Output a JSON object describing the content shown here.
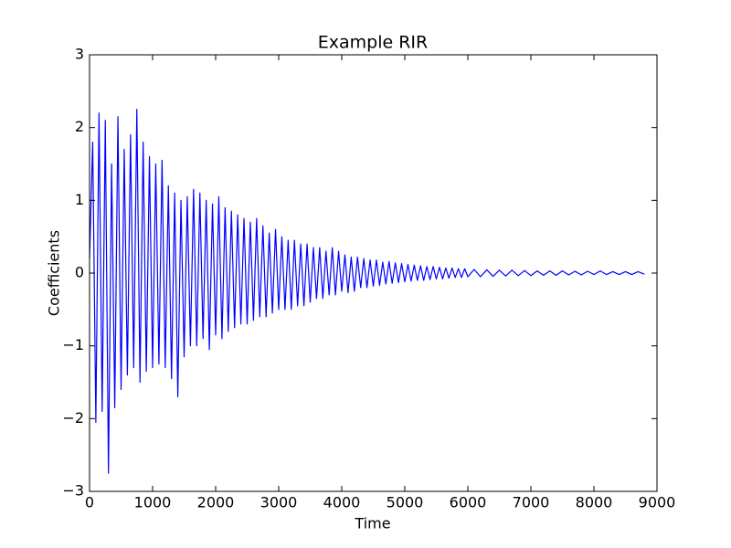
{
  "chart_data": {
    "type": "line",
    "title": "Example RIR",
    "xlabel": "Time",
    "ylabel": "Coefficients",
    "x": [
      0,
      50,
      100,
      150,
      200,
      250,
      300,
      350,
      400,
      450,
      500,
      550,
      600,
      650,
      700,
      750,
      800,
      850,
      900,
      950,
      1000,
      1050,
      1100,
      1150,
      1200,
      1250,
      1300,
      1350,
      1400,
      1450,
      1500,
      1550,
      1600,
      1650,
      1700,
      1750,
      1800,
      1850,
      1900,
      1950,
      2000,
      2050,
      2100,
      2150,
      2200,
      2250,
      2300,
      2350,
      2400,
      2450,
      2500,
      2550,
      2600,
      2650,
      2700,
      2750,
      2800,
      2850,
      2900,
      2950,
      3000,
      3050,
      3100,
      3150,
      3200,
      3250,
      3300,
      3350,
      3400,
      3450,
      3500,
      3550,
      3600,
      3650,
      3700,
      3750,
      3800,
      3850,
      3900,
      3950,
      4000,
      4050,
      4100,
      4150,
      4200,
      4250,
      4300,
      4350,
      4400,
      4450,
      4500,
      4550,
      4600,
      4650,
      4700,
      4750,
      4800,
      4850,
      4900,
      4950,
      5000,
      5050,
      5100,
      5150,
      5200,
      5250,
      5300,
      5350,
      5400,
      5450,
      5500,
      5550,
      5600,
      5650,
      5700,
      5750,
      5800,
      5850,
      5900,
      5950,
      6000,
      6100,
      6200,
      6300,
      6400,
      6500,
      6600,
      6700,
      6800,
      6900,
      7000,
      7100,
      7200,
      7300,
      7400,
      7500,
      7600,
      7700,
      7800,
      7900,
      8000,
      8100,
      8200,
      8300,
      8400,
      8500,
      8600,
      8700,
      8800
    ],
    "series": [
      {
        "color": "#0000ff",
        "values": [
          0.2,
          1.8,
          -2.05,
          2.2,
          -1.9,
          2.1,
          -2.75,
          1.5,
          -1.85,
          2.15,
          -1.6,
          1.7,
          -1.4,
          1.9,
          -1.3,
          2.25,
          -1.5,
          1.8,
          -1.35,
          1.6,
          -1.3,
          1.5,
          -1.25,
          1.55,
          -1.3,
          1.2,
          -1.45,
          1.1,
          -1.7,
          1.0,
          -1.15,
          1.05,
          -1.0,
          1.15,
          -1.0,
          1.1,
          -0.9,
          1.0,
          -1.05,
          0.95,
          -0.85,
          1.05,
          -0.9,
          0.9,
          -0.8,
          0.85,
          -0.75,
          0.8,
          -0.7,
          0.75,
          -0.7,
          0.7,
          -0.65,
          0.75,
          -0.6,
          0.65,
          -0.6,
          0.55,
          -0.55,
          0.6,
          -0.5,
          0.5,
          -0.5,
          0.45,
          -0.5,
          0.45,
          -0.45,
          0.4,
          -0.45,
          0.4,
          -0.4,
          0.35,
          -0.35,
          0.35,
          -0.35,
          0.3,
          -0.3,
          0.35,
          -0.3,
          0.3,
          -0.25,
          0.25,
          -0.27,
          0.22,
          -0.25,
          0.22,
          -0.2,
          0.2,
          -0.2,
          0.18,
          -0.18,
          0.18,
          -0.17,
          0.15,
          -0.15,
          0.16,
          -0.14,
          0.14,
          -0.13,
          0.13,
          -0.12,
          0.12,
          -0.11,
          0.11,
          -0.1,
          0.1,
          -0.1,
          0.09,
          -0.09,
          0.09,
          -0.08,
          0.08,
          -0.08,
          0.07,
          -0.07,
          0.07,
          -0.06,
          0.06,
          -0.06,
          0.06,
          -0.05,
          0.05,
          -0.05,
          0.045,
          -0.045,
          0.04,
          -0.04,
          0.04,
          -0.035,
          0.035,
          -0.035,
          0.03,
          -0.03,
          0.03,
          -0.03,
          0.03,
          -0.025,
          0.025,
          -0.025,
          0.025,
          -0.02,
          0.03,
          -0.02,
          0.02,
          -0.02,
          0.02,
          -0.02,
          0.02,
          -0.015
        ]
      }
    ],
    "xlim": [
      0,
      9000
    ],
    "xticks": [
      0,
      1000,
      2000,
      3000,
      4000,
      5000,
      6000,
      7000,
      8000,
      9000
    ],
    "ylim": [
      -3,
      3
    ],
    "yticks": [
      {
        "value": -3,
        "label": "−3"
      },
      {
        "value": -2,
        "label": "−2"
      },
      {
        "value": -1,
        "label": "−1"
      },
      0,
      1,
      2,
      3
    ],
    "grid": false
  }
}
